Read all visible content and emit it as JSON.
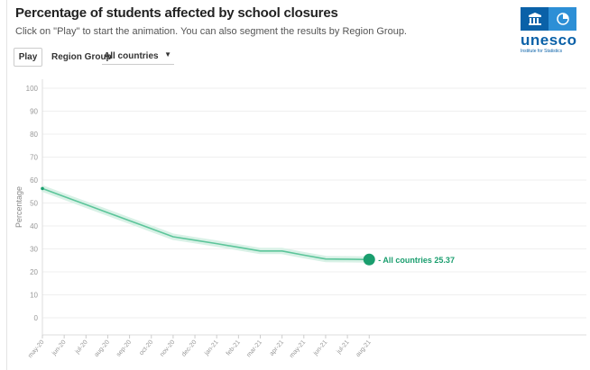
{
  "header": {
    "title": "Percentage of students affected by school closures",
    "subtitle": "Click on \"Play\" to start the animation. You can also segment the results by Region Group."
  },
  "controls": {
    "play_label": "Play",
    "region_label": "Region Group",
    "region_value": "All countries"
  },
  "logo": {
    "text": "unesco",
    "sub": "Institute for Statistics"
  },
  "chart_data": {
    "type": "line",
    "ylabel": "Percentage",
    "ylim": [
      0,
      100
    ],
    "yticks": [
      0,
      10,
      20,
      30,
      40,
      50,
      60,
      70,
      80,
      90,
      100
    ],
    "grid": true,
    "categories": [
      "may-20",
      "jun-20",
      "jul-20",
      "aug-20",
      "sep-20",
      "oct-20",
      "nov-20",
      "dec-20",
      "jan-21",
      "feb-21",
      "mar-21",
      "apr-21",
      "may-21",
      "jun-21",
      "jul-21",
      "aug-21"
    ],
    "series": [
      {
        "name": "All countries",
        "color": "#1a9e6e",
        "values": [
          56.3,
          52.8,
          49.3,
          45.8,
          42.3,
          38.8,
          35.3,
          33.8,
          32.3,
          30.7,
          29.1,
          29.1,
          27.3,
          25.6,
          25.5,
          25.37
        ]
      }
    ],
    "end_label": "- All countries 25.37"
  }
}
